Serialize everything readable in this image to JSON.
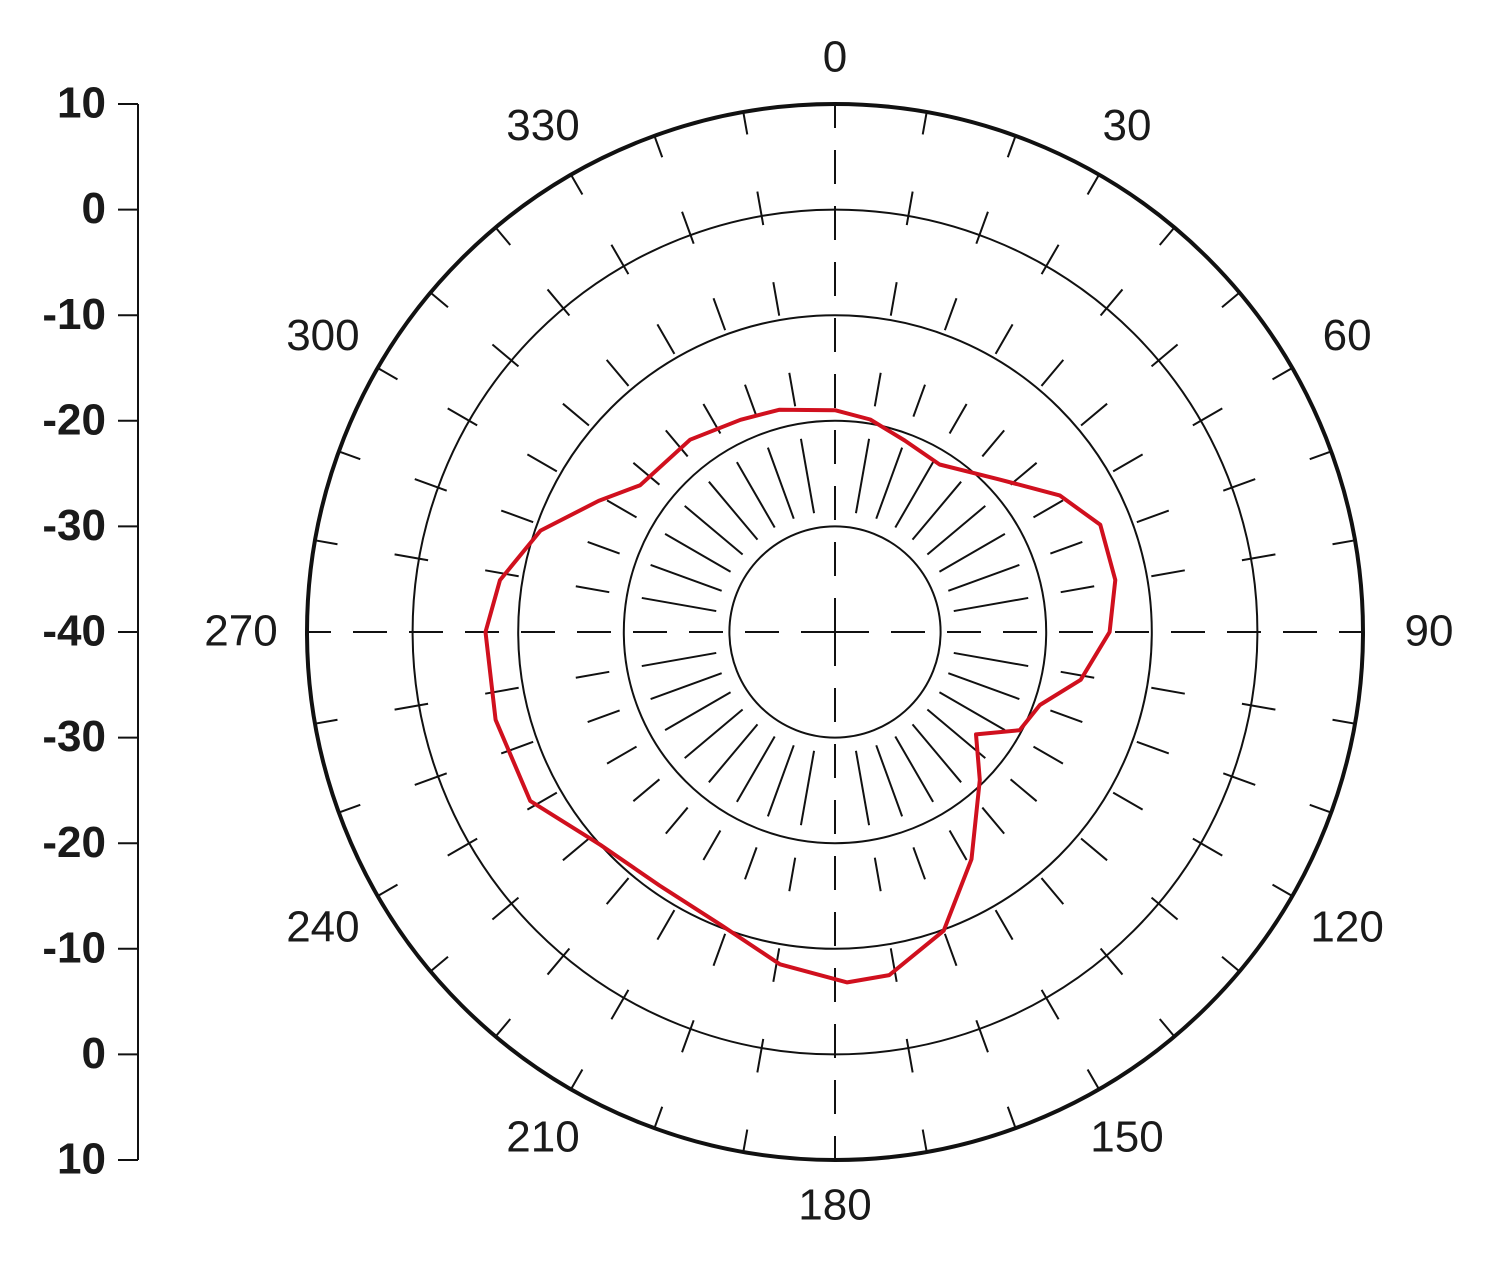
{
  "chart_data": {
    "type": "polar",
    "theta": [
      0,
      9.4,
      20,
      32,
      47,
      58.7,
      68,
      79.5,
      90,
      101,
      109.6,
      118,
      126,
      135.6,
      149,
      160,
      171,
      178,
      189.4,
      201,
      214.7,
      227.8,
      241,
      255.5,
      270,
      278.8,
      289,
      299,
      307,
      323,
      336,
      346
    ],
    "values": [
      -19.0,
      -19.6,
      -20.7,
      -21.3,
      -18.8,
      -15.1,
      -12.9,
      -13.0,
      -14.0,
      -16.3,
      -19.4,
      -20.2,
      -23.5,
      -20.4,
      -14.9,
      -9.9,
      -7.1,
      -6.8,
      -8.1,
      -10.2,
      -10.8,
      -10.0,
      -7.0,
      -6.8,
      -6.9,
      -7.9,
      -10.5,
      -14.4,
      -16.9,
      -17.2,
      -18.0,
      -18.3
    ],
    "color": "#d0101e",
    "rlim": [
      -40,
      10
    ],
    "rticks": [
      -40,
      -30,
      -20,
      -10,
      0,
      10
    ],
    "thetaticks": [
      0,
      30,
      60,
      90,
      120,
      150,
      180,
      210,
      240,
      270,
      300,
      330
    ],
    "thetaminorticks": [
      0,
      10,
      20,
      30,
      40,
      50,
      60,
      70,
      80,
      90,
      100,
      110,
      120,
      130,
      140,
      150,
      160,
      170,
      180,
      190,
      200,
      210,
      220,
      230,
      240,
      250,
      260,
      270,
      280,
      290,
      300,
      310,
      320,
      330,
      340,
      350
    ],
    "grid": true
  }
}
